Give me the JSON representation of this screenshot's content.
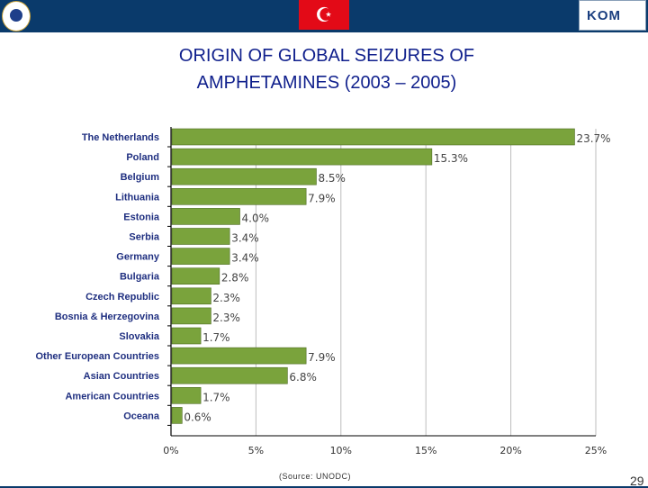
{
  "header": {
    "flag_symbol": "☪",
    "right_logo_text": "KOM",
    "left_logo_icon": "police-emblem-icon"
  },
  "title_lines": [
    "ORIGIN OF GLOBAL SEIZURES OF",
    "AMPHETAMINES (2003 – 2005)"
  ],
  "source": "(Source: UNODC)",
  "page_number": "29",
  "colors": {
    "bar": "#7aa33c",
    "bar_border": "#4d6b22",
    "title": "#0f1f8c",
    "header_bg": "#0a3a6b"
  },
  "chart_data": {
    "type": "bar",
    "orientation": "horizontal",
    "categories": [
      "The Netherlands",
      "Poland",
      "Belgium",
      "Lithuania",
      "Estonia",
      "Serbia",
      "Germany",
      "Bulgaria",
      "Czech Republic",
      "Bosnia & Herzegovina",
      "Slovakia",
      "Other European Countries",
      "Asian Countries",
      "American Countries",
      "Oceana"
    ],
    "values": [
      23.7,
      15.3,
      8.5,
      7.9,
      4.0,
      3.4,
      3.4,
      2.8,
      2.3,
      2.3,
      1.7,
      7.9,
      6.8,
      1.7,
      0.6
    ],
    "value_labels": [
      "23.7%",
      "15.3%",
      "8.5%",
      "7.9%",
      "4.0%",
      "3.4%",
      "3.4%",
      "2.8%",
      "2.3%",
      "2.3%",
      "1.7%",
      "7.9%",
      "6.8%",
      "1.7%",
      "0.6%"
    ],
    "xlim": [
      0,
      25
    ],
    "xticks": [
      0,
      5,
      10,
      15,
      20,
      25
    ],
    "xtick_labels": [
      "0%",
      "5%",
      "10%",
      "15%",
      "20%",
      "25%"
    ],
    "grid": true
  }
}
